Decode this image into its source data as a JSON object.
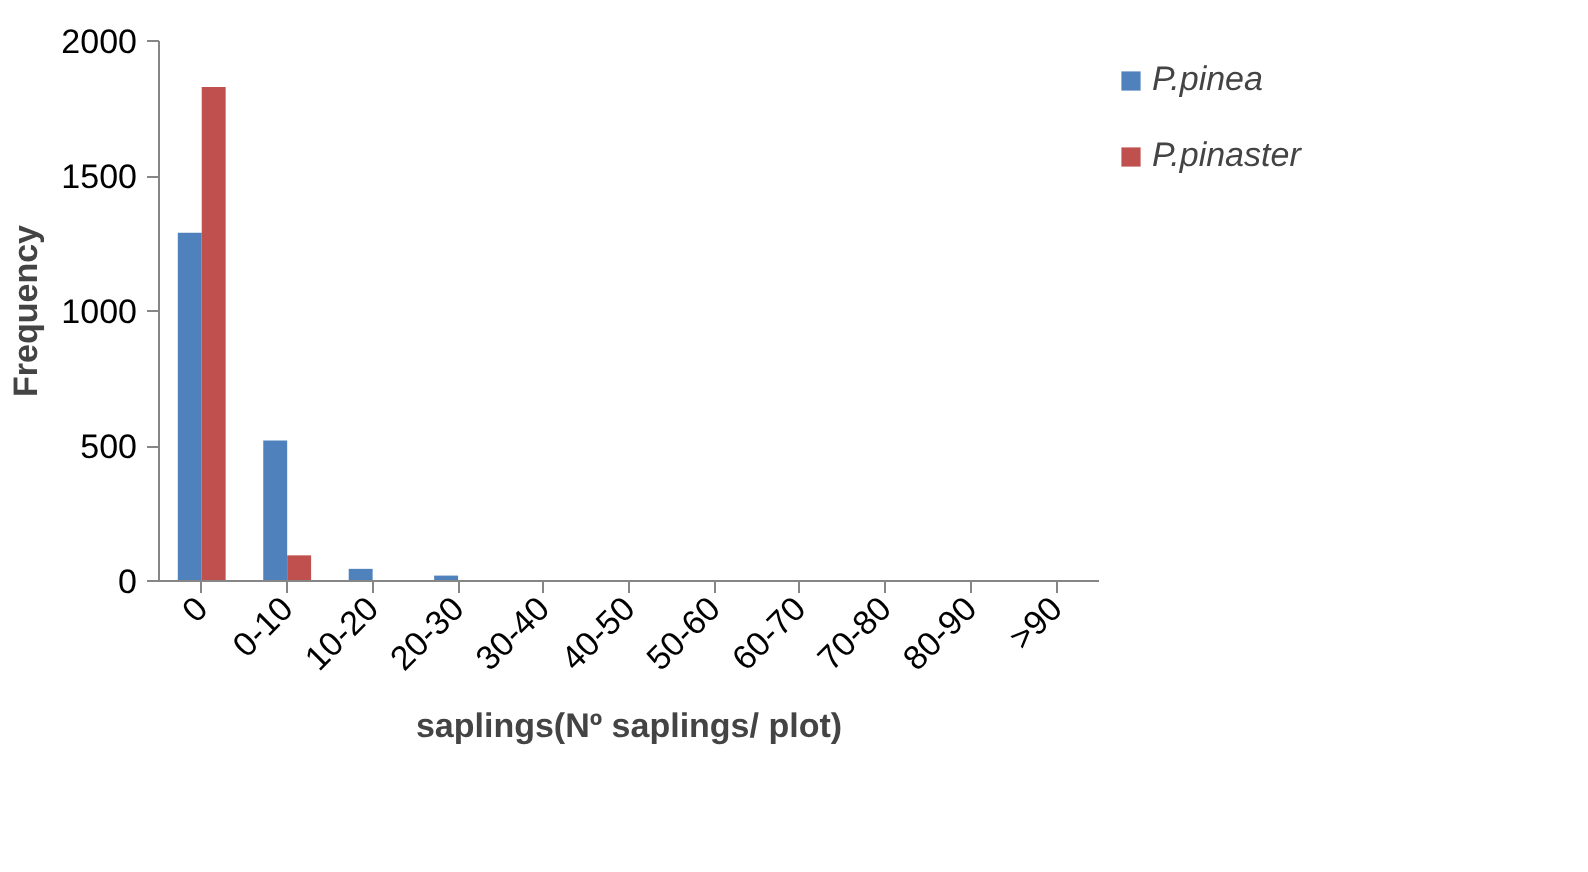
{
  "chart_data": {
    "type": "bar",
    "xlabel": "saplings(Nº saplings/ plot)",
    "ylabel": "Frequency",
    "categories": [
      "0",
      "0-10",
      "10-20",
      "20-30",
      "30-40",
      "40-50",
      "50-60",
      "60-70",
      "70-80",
      "80-90",
      ">90"
    ],
    "series": [
      {
        "name": "P.pinea",
        "color": "#4f81bd",
        "values": [
          1290,
          520,
          45,
          20,
          3,
          0,
          0,
          0,
          0,
          0,
          0
        ]
      },
      {
        "name": "P.pinaster",
        "color": "#c0504d",
        "values": [
          1830,
          95,
          0,
          0,
          0,
          0,
          0,
          0,
          0,
          0,
          0
        ]
      }
    ],
    "ylim": [
      0,
      2000
    ],
    "yticks": [
      0,
      500,
      1000,
      1500,
      2000
    ],
    "grid": false,
    "legend": "right"
  }
}
